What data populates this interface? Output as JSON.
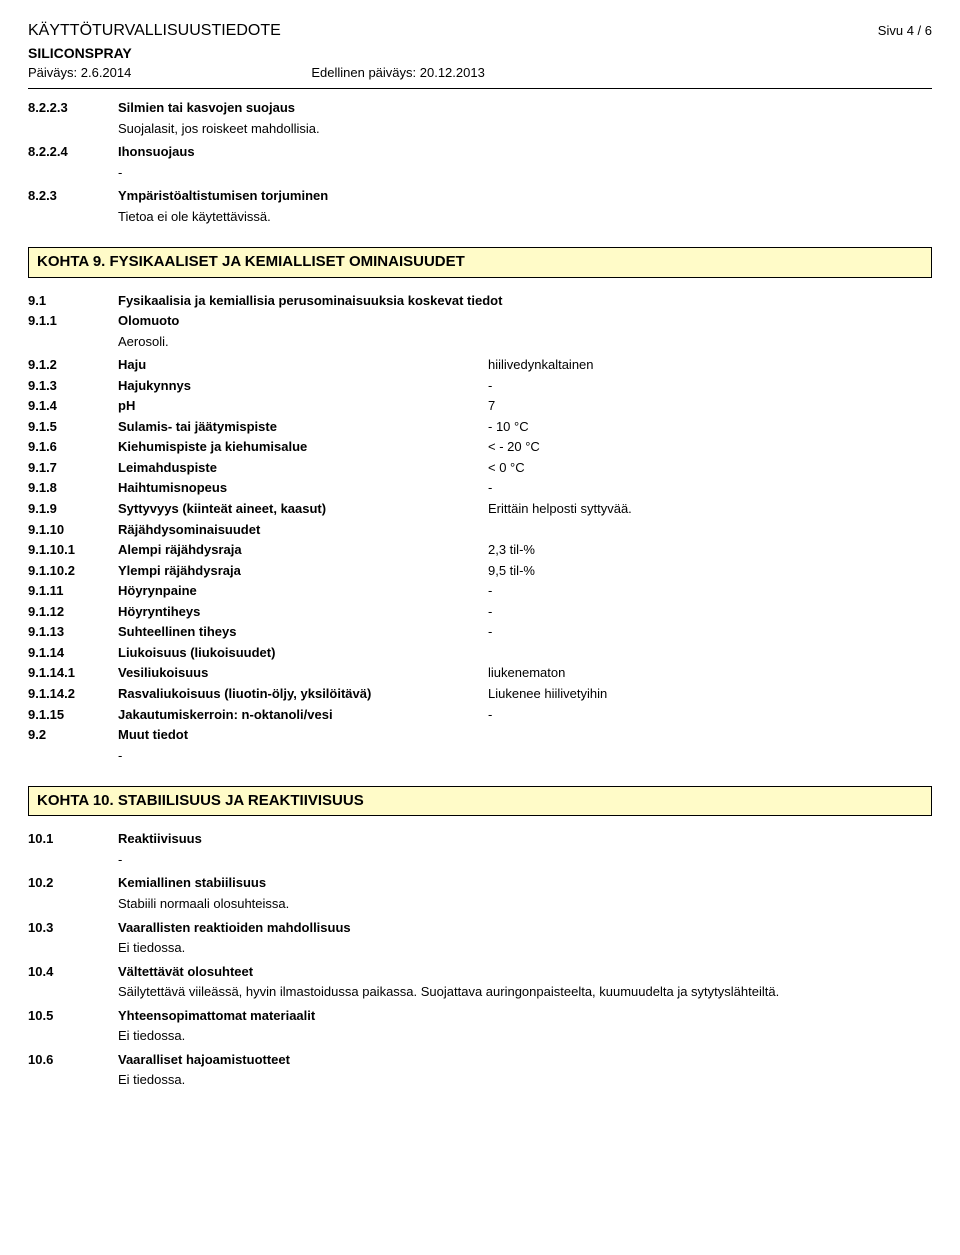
{
  "header": {
    "title": "KÄYTTÖTURVALLISUUSTIEDOTE",
    "product": "SILICONSPRAY",
    "date": "Päiväys: 2.6.2014",
    "prev_date": "Edellinen päiväys: 20.12.2013",
    "page": "Sivu 4 / 6"
  },
  "s8223": {
    "code": "8.2.2.3",
    "label": "Silmien tai kasvojen suojaus",
    "text": "Suojalasit, jos roiskeet mahdollisia."
  },
  "s8224": {
    "code": "8.2.2.4",
    "label": "Ihonsuojaus",
    "text": "-"
  },
  "s823": {
    "code": "8.2.3",
    "label": "Ympäristöaltistumisen torjuminen",
    "text": "Tietoa ei ole käytettävissä."
  },
  "kohta9": "KOHTA 9. FYSIKAALISET JA KEMIALLISET OMINAISUUDET",
  "s91": {
    "code": "9.1",
    "label": "Fysikaalisia ja kemiallisia perusominaisuuksia koskevat tiedot"
  },
  "s911": {
    "code": "9.1.1",
    "label": "Olomuoto",
    "text": "Aerosoli."
  },
  "s912": {
    "code": "9.1.2",
    "label": "Haju",
    "value": "hiilivedynkaltainen"
  },
  "s913": {
    "code": "9.1.3",
    "label": "Hajukynnys",
    "value": "-"
  },
  "s914": {
    "code": "9.1.4",
    "label": "pH",
    "value": "7"
  },
  "s915": {
    "code": "9.1.5",
    "label": "Sulamis- tai jäätymispiste",
    "value": "- 10 °C"
  },
  "s916": {
    "code": "9.1.6",
    "label": "Kiehumispiste ja kiehumisalue",
    "value": "< - 20 °C"
  },
  "s917": {
    "code": "9.1.7",
    "label": "Leimahduspiste",
    "value": "< 0 °C"
  },
  "s918": {
    "code": "9.1.8",
    "label": "Haihtumisnopeus",
    "value": "-"
  },
  "s919": {
    "code": "9.1.9",
    "label": "Syttyvyys (kiinteät aineet, kaasut)",
    "value": "Erittäin helposti syttyvää."
  },
  "s9110": {
    "code": "9.1.10",
    "label": "Räjähdysominaisuudet"
  },
  "s91101": {
    "code": "9.1.10.1",
    "label": "Alempi räjähdysraja",
    "value": "2,3 til-%"
  },
  "s91102": {
    "code": "9.1.10.2",
    "label": "Ylempi räjähdysraja",
    "value": "9,5 til-%"
  },
  "s9111": {
    "code": "9.1.11",
    "label": "Höyrynpaine",
    "value": "-"
  },
  "s9112": {
    "code": "9.1.12",
    "label": "Höyryntiheys",
    "value": "-"
  },
  "s9113": {
    "code": "9.1.13",
    "label": "Suhteellinen tiheys",
    "value": "-"
  },
  "s9114": {
    "code": "9.1.14",
    "label": "Liukoisuus (liukoisuudet)"
  },
  "s91141": {
    "code": "9.1.14.1",
    "label": "Vesiliukoisuus",
    "value": "liukenematon"
  },
  "s91142": {
    "code": "9.1.14.2",
    "label": "Rasvaliukoisuus (liuotin-öljy, yksilöitävä)",
    "value": "Liukenee hiilivetyihin"
  },
  "s9115": {
    "code": "9.1.15",
    "label": "Jakautumiskerroin: n-oktanoli/vesi",
    "value": "-"
  },
  "s92": {
    "code": "9.2",
    "label": "Muut tiedot",
    "text": "-"
  },
  "kohta10": "KOHTA 10. STABIILISUUS JA REAKTIIVISUUS",
  "s101": {
    "code": "10.1",
    "label": "Reaktiivisuus",
    "text": "-"
  },
  "s102": {
    "code": "10.2",
    "label": "Kemiallinen stabiilisuus",
    "text": "Stabiili normaali olosuhteissa."
  },
  "s103": {
    "code": "10.3",
    "label": "Vaarallisten reaktioiden mahdollisuus",
    "text": "Ei tiedossa."
  },
  "s104": {
    "code": "10.4",
    "label": "Vältettävät olosuhteet",
    "text": "Säilytettävä viileässä, hyvin ilmastoidussa paikassa. Suojattava auringonpaisteelta, kuumuudelta ja sytytyslähteiltä."
  },
  "s105": {
    "code": "10.5",
    "label": "Yhteensopimattomat materiaalit",
    "text": "Ei tiedossa."
  },
  "s106": {
    "code": "10.6",
    "label": "Vaaralliset hajoamistuotteet",
    "text": "Ei tiedossa."
  }
}
